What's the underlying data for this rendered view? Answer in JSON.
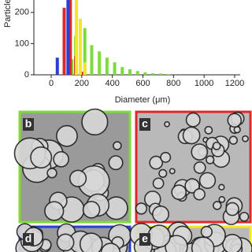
{
  "chart_data": {
    "type": "bar",
    "xlabel": "Diameter (μm)",
    "ylabel": "Particle number",
    "xlim": [
      0,
      1200
    ],
    "xticks": [
      0,
      200,
      400,
      600,
      800,
      1000,
      1200
    ],
    "ylim": [
      0,
      250
    ],
    "yticks": [
      0,
      100,
      200
    ],
    "series": [
      {
        "name": "b",
        "color": "#7ddc3c",
        "x": [
          135,
          160,
          220,
          265,
          315,
          365,
          415,
          465,
          515,
          565,
          615,
          665,
          715,
          765
        ],
        "values": [
          50,
          125,
          150,
          95,
          75,
          55,
          40,
          25,
          18,
          12,
          8,
          5,
          4,
          2
        ]
      },
      {
        "name": "c",
        "color": "#e0282a",
        "x": [
          85,
          125,
          160,
          200
        ],
        "values": [
          215,
          270,
          60,
          10
        ]
      },
      {
        "name": "d",
        "color": "#2a3fd0",
        "x": [
          40,
          110
        ],
        "values": [
          55,
          270
        ]
      },
      {
        "name": "e",
        "color": "#f2e626",
        "x": [
          165,
          190,
          220
        ],
        "values": [
          270,
          180,
          40
        ]
      }
    ]
  },
  "panels": [
    {
      "label": "b"
    },
    {
      "label": "c"
    },
    {
      "label": "d"
    },
    {
      "label": "e"
    }
  ]
}
